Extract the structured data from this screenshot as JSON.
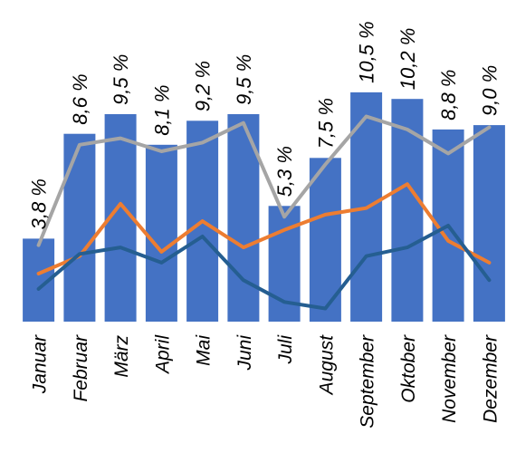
{
  "chart_data": {
    "type": "bar",
    "categories": [
      "Januar",
      "Februar",
      "März",
      "April",
      "Mai",
      "Juni",
      "Juli",
      "August",
      "September",
      "Oktober",
      "November",
      "Dezember"
    ],
    "bar_values": [
      3.8,
      8.6,
      9.5,
      8.1,
      9.2,
      9.5,
      5.3,
      7.5,
      10.5,
      10.2,
      8.8,
      9.0
    ],
    "bar_labels": [
      "3,8 %",
      "8,6 %",
      "9,5 %",
      "8,1 %",
      "9,2 %",
      "9,5 %",
      "5,3 %",
      "7,5 %",
      "10,5 %",
      "10,2 %",
      "8,8 %",
      "9,0 %"
    ],
    "ylim": [
      0,
      11
    ],
    "xlabel": "",
    "ylabel": "",
    "title": "",
    "grid": false,
    "legend": "none",
    "series": [
      {
        "type": "bar",
        "color": "#4472C4",
        "values": [
          3.8,
          8.6,
          9.5,
          8.1,
          9.2,
          9.5,
          5.3,
          7.5,
          10.5,
          10.2,
          8.8,
          9.0
        ]
      },
      {
        "type": "line",
        "color": "#A5A5A5",
        "values": [
          3.5,
          8.1,
          8.4,
          7.8,
          8.2,
          9.1,
          4.8,
          7.2,
          9.4,
          8.8,
          7.7,
          8.9
        ]
      },
      {
        "type": "line",
        "color": "#ED7D31",
        "values": [
          2.2,
          3.0,
          5.4,
          3.2,
          4.6,
          3.4,
          4.2,
          4.9,
          5.2,
          6.3,
          3.7,
          2.7
        ]
      },
      {
        "type": "line",
        "color": "#255E91",
        "values": [
          1.5,
          3.1,
          3.4,
          2.7,
          3.9,
          1.9,
          0.9,
          0.6,
          3.0,
          3.4,
          4.4,
          1.9
        ]
      }
    ]
  }
}
